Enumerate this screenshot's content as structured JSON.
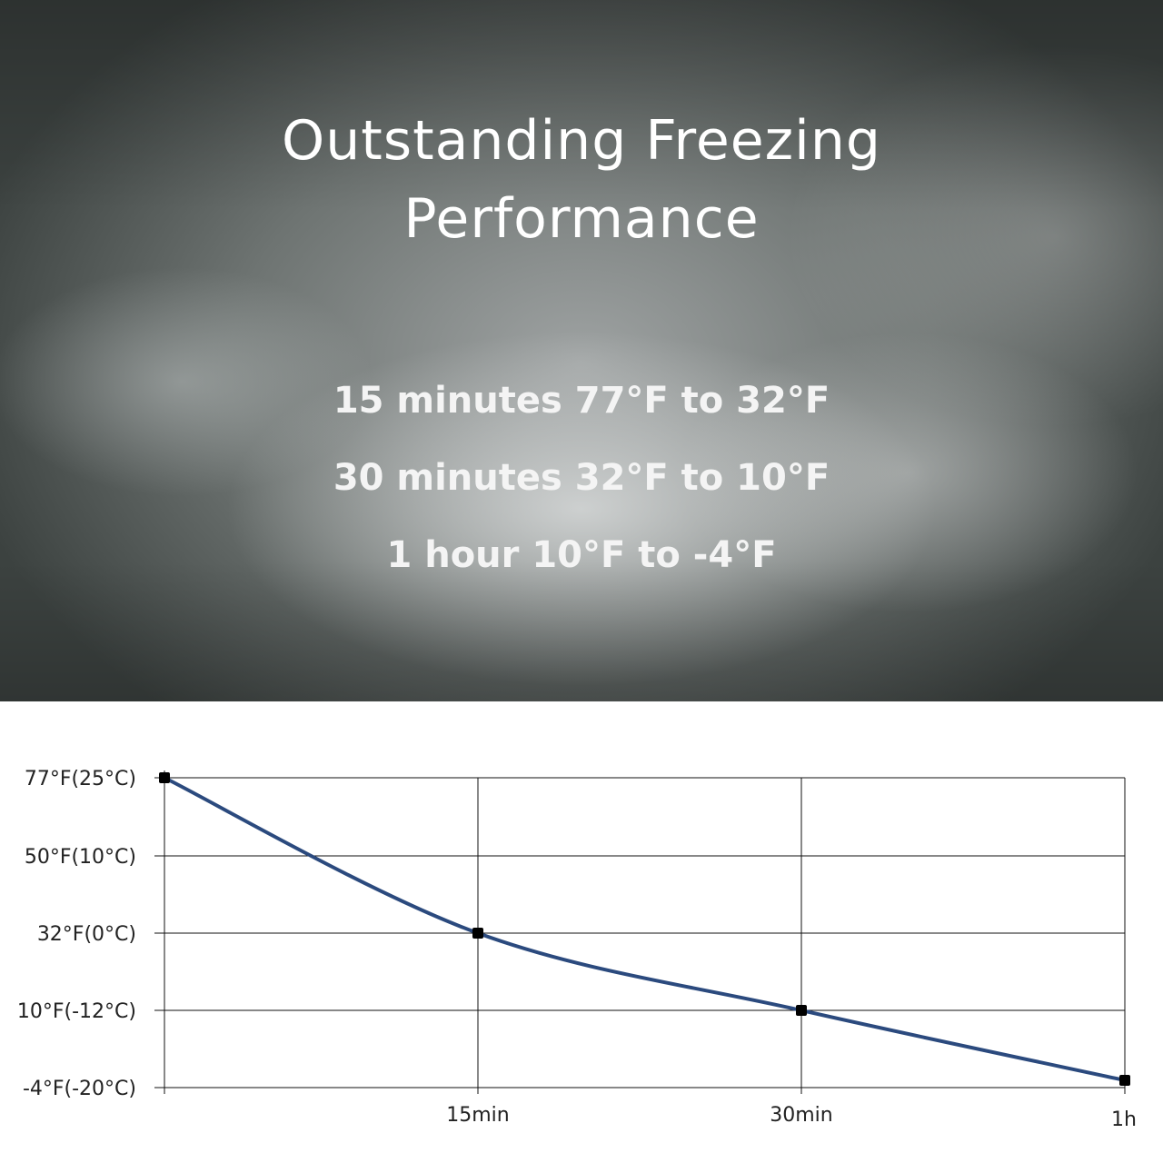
{
  "hero": {
    "title_line1": "Outstanding Freezing",
    "title_line2": "Performance",
    "stats": [
      "15 minutes 77°F to 32°F",
      "30 minutes 32°F to 10°F",
      "1 hour 10°F to -4°F"
    ]
  },
  "chart_data": {
    "type": "line",
    "title": "",
    "xlabel": "",
    "ylabel": "",
    "x_ticks": [
      "15min",
      "30min",
      "1h"
    ],
    "y_ticks": [
      "77°F(25°C)",
      "50°F(10°C)",
      "32°F(0°C)",
      "10°F(-12°C)",
      "-4°F(-20°C)"
    ],
    "series": [
      {
        "points": [
          {
            "x": "0min",
            "y": "77°F"
          },
          {
            "x": "15min",
            "y": "32°F"
          },
          {
            "x": "30min",
            "y": "10°F"
          },
          {
            "x": "1h",
            "y": "-4°F"
          }
        ]
      }
    ],
    "line_color": "#2b4a7e",
    "marker_color": "#000000",
    "grid": true
  }
}
